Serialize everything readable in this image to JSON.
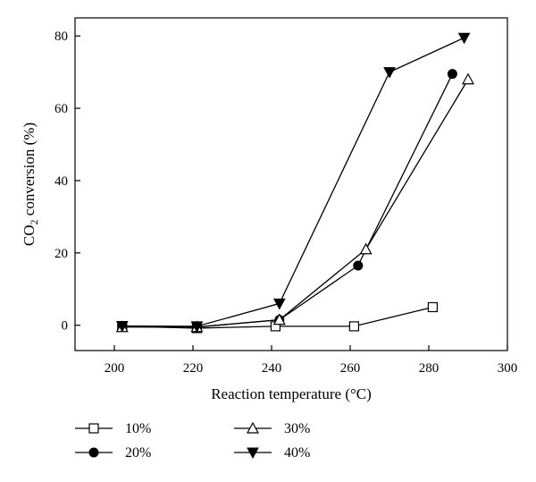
{
  "chart_data": {
    "type": "line",
    "xlabel": "Reaction temperature (°C)",
    "ylabel_prefix": "CO",
    "ylabel_subscript": "2",
    "ylabel_suffix": " conversion (%)",
    "xlim": [
      190,
      300
    ],
    "ylim": [
      -7,
      85
    ],
    "xticks": [
      200,
      220,
      240,
      260,
      280,
      300
    ],
    "yticks": [
      0,
      20,
      40,
      60,
      80
    ],
    "grid": false,
    "legend_position": "bottom",
    "series": [
      {
        "name": "10%",
        "marker": "open-square",
        "color": "#000000",
        "x": [
          202,
          221,
          241,
          261,
          281
        ],
        "y": [
          -0.3,
          -0.8,
          -0.3,
          -0.3,
          5
        ]
      },
      {
        "name": "20%",
        "marker": "filled-circle",
        "color": "#000000",
        "x": [
          202,
          221,
          242,
          262,
          286
        ],
        "y": [
          -0.2,
          -0.5,
          1.5,
          16.5,
          69.5
        ]
      },
      {
        "name": "30%",
        "marker": "open-triangle-up",
        "color": "#000000",
        "x": [
          202,
          221,
          242,
          264,
          290
        ],
        "y": [
          -0.5,
          -0.5,
          1.5,
          21,
          68
        ]
      },
      {
        "name": "40%",
        "marker": "filled-triangle-down",
        "color": "#000000",
        "x": [
          202,
          221,
          242,
          270,
          289
        ],
        "y": [
          -0.2,
          -0.3,
          6,
          70,
          79.5
        ]
      }
    ]
  }
}
